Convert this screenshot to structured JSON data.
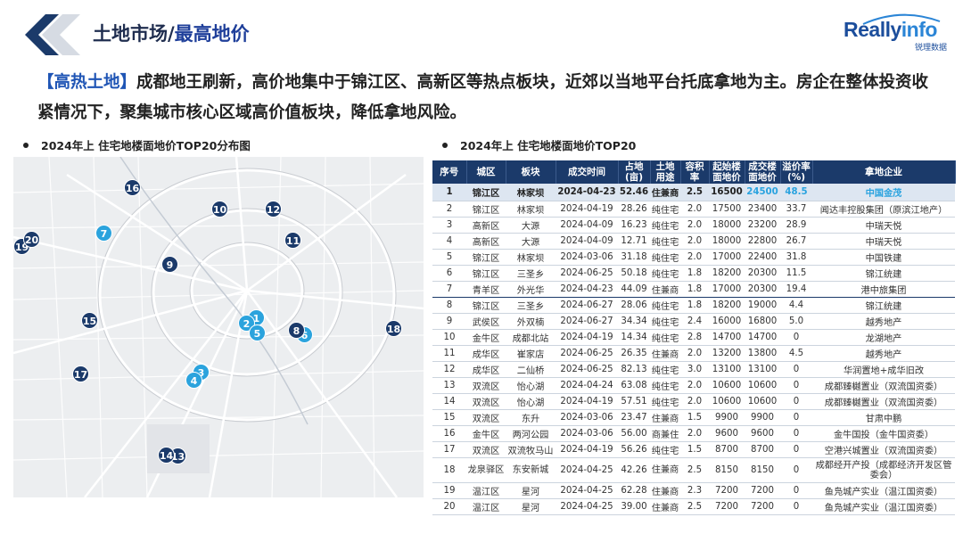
{
  "header": {
    "title_prefix": "土地市场/",
    "title_highlight": "最高地价",
    "logo_brand_part1": "Really",
    "logo_brand_part2": "info",
    "logo_sub": "锐理数据"
  },
  "lead": {
    "tag": "【高热土地】",
    "text": "成都地王刷新，高价地集中于锦江区、高新区等热点板块，近郊以当地平台托底拿地为主。房企在整体投资收紧情况下，聚集城市核心区域高价值板块，降低拿地风险。"
  },
  "map_section": {
    "heading": "2024年上 住宅地楼面地价TOP20分布图",
    "pins": [
      {
        "label": "1",
        "style": "light"
      },
      {
        "label": "2",
        "style": "light"
      },
      {
        "label": "3",
        "style": "light"
      },
      {
        "label": "4",
        "style": "light"
      },
      {
        "label": "5",
        "style": "light"
      },
      {
        "label": "6",
        "style": "light"
      },
      {
        "label": "7",
        "style": "light"
      },
      {
        "label": "8",
        "style": "dark"
      },
      {
        "label": "9",
        "style": "dark"
      },
      {
        "label": "10",
        "style": "dark"
      },
      {
        "label": "11",
        "style": "dark"
      },
      {
        "label": "12",
        "style": "dark"
      },
      {
        "label": "13",
        "style": "dark"
      },
      {
        "label": "14",
        "style": "dark"
      },
      {
        "label": "15",
        "style": "dark"
      },
      {
        "label": "16",
        "style": "dark"
      },
      {
        "label": "17",
        "style": "dark"
      },
      {
        "label": "18",
        "style": "dark"
      },
      {
        "label": "19",
        "style": "dark"
      },
      {
        "label": "20",
        "style": "dark"
      }
    ]
  },
  "table_section": {
    "heading": "2024年上 住宅地楼面地价TOP20",
    "columns": [
      "序号",
      "城区",
      "板块",
      "成交时间",
      "占地(亩)",
      "土地用途",
      "容积率",
      "起始楼面地价",
      "成交楼面地价",
      "溢价率(%)",
      "拿地企业"
    ],
    "rows": [
      [
        "1",
        "锦江区",
        "林家坝",
        "2024-04-23",
        "52.46",
        "住兼商",
        "2.5",
        "16500",
        "24500",
        "48.5",
        "中国金茂"
      ],
      [
        "2",
        "锦江区",
        "林家坝",
        "2024-04-19",
        "28.26",
        "纯住宅",
        "2.0",
        "17500",
        "23400",
        "33.7",
        "闻达丰控股集团（原滨江地产）"
      ],
      [
        "3",
        "高新区",
        "大源",
        "2024-04-09",
        "16.23",
        "纯住宅",
        "2.0",
        "18000",
        "23200",
        "28.9",
        "中瑞天悦"
      ],
      [
        "4",
        "高新区",
        "大源",
        "2024-04-09",
        "12.71",
        "纯住宅",
        "2.0",
        "18000",
        "22800",
        "26.7",
        "中瑞天悦"
      ],
      [
        "5",
        "锦江区",
        "林家坝",
        "2024-03-06",
        "31.18",
        "纯住宅",
        "2.0",
        "17000",
        "22400",
        "31.8",
        "中国铁建"
      ],
      [
        "6",
        "锦江区",
        "三圣乡",
        "2024-06-25",
        "50.18",
        "纯住宅",
        "1.8",
        "18200",
        "20300",
        "11.5",
        "锦江统建"
      ],
      [
        "7",
        "青羊区",
        "外光华",
        "2024-04-23",
        "44.09",
        "住兼商",
        "1.8",
        "17000",
        "20300",
        "19.4",
        "港中旅集团"
      ],
      [
        "8",
        "锦江区",
        "三圣乡",
        "2024-06-27",
        "28.06",
        "纯住宅",
        "1.8",
        "18200",
        "19000",
        "4.4",
        "锦江统建"
      ],
      [
        "9",
        "武侯区",
        "外双楠",
        "2024-06-27",
        "34.34",
        "纯住宅",
        "2.4",
        "16000",
        "16800",
        "5.0",
        "越秀地产"
      ],
      [
        "10",
        "金牛区",
        "成都北站",
        "2024-04-19",
        "14.34",
        "纯住宅",
        "2.8",
        "14700",
        "14700",
        "0",
        "龙湖地产"
      ],
      [
        "11",
        "成华区",
        "崔家店",
        "2024-06-25",
        "26.35",
        "住兼商",
        "2.0",
        "13200",
        "13800",
        "4.5",
        "越秀地产"
      ],
      [
        "12",
        "成华区",
        "二仙桥",
        "2024-06-25",
        "82.13",
        "纯住宅",
        "3.0",
        "13100",
        "13100",
        "0",
        "华润置地+成华旧改"
      ],
      [
        "13",
        "双流区",
        "怡心湖",
        "2024-04-24",
        "63.08",
        "纯住宅",
        "2.0",
        "10600",
        "10600",
        "0",
        "成都臻樾置业（双流国资委）"
      ],
      [
        "14",
        "双流区",
        "怡心湖",
        "2024-04-19",
        "57.51",
        "纯住宅",
        "2.0",
        "10600",
        "10600",
        "0",
        "成都臻樾置业（双流国资委）"
      ],
      [
        "15",
        "双流区",
        "东升",
        "2024-03-06",
        "23.47",
        "住兼商",
        "1.5",
        "9900",
        "9900",
        "0",
        "甘肃中鹏"
      ],
      [
        "16",
        "金牛区",
        "两河公园",
        "2024-03-06",
        "56.00",
        "商兼住",
        "2.0",
        "9600",
        "9600",
        "0",
        "金牛国投（金牛国资委）"
      ],
      [
        "17",
        "双流区",
        "双流牧马山",
        "2024-04-19",
        "56.26",
        "纯住宅",
        "1.5",
        "8700",
        "8700",
        "0",
        "空港兴城置业（双流国资委）"
      ],
      [
        "18",
        "龙泉驿区",
        "东安新城",
        "2024-04-25",
        "42.26",
        "住兼商",
        "2.5",
        "8150",
        "8150",
        "0",
        "成都经开产投（成都经济开发区管委会）"
      ],
      [
        "19",
        "温江区",
        "星河",
        "2024-04-25",
        "62.28",
        "住兼商",
        "2.3",
        "7200",
        "7200",
        "0",
        "鱼凫城产实业（温江国资委）"
      ],
      [
        "20",
        "温江区",
        "星河",
        "2024-04-25",
        "39.00",
        "住兼商",
        "2.5",
        "7200",
        "7200",
        "0",
        "鱼凫城产实业（温江国资委）"
      ]
    ]
  }
}
